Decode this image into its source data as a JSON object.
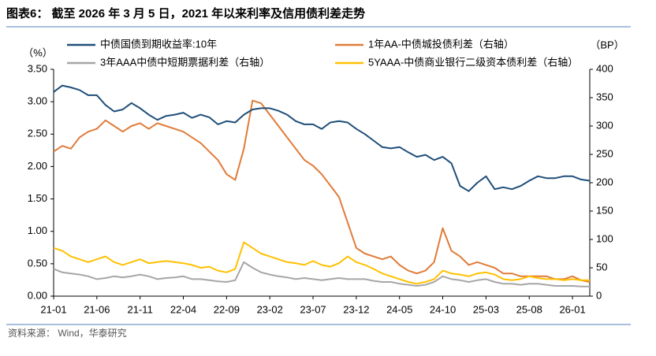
{
  "chart_data": {
    "type": "line",
    "title": "图表6：  截至 2026 年 3 月 5 日，2021 年以来利率及信用债利差走势",
    "source": "资料来源：  Wind，华泰研究",
    "y_label": "（%）",
    "y2_label": "（BP）",
    "categories": [
      "21-01",
      null,
      null,
      null,
      null,
      "21-06",
      null,
      null,
      null,
      null,
      "21-11",
      null,
      null,
      null,
      null,
      "22-04",
      null,
      null,
      null,
      null,
      "22-09",
      null,
      null,
      null,
      null,
      "23-02",
      null,
      null,
      null,
      null,
      "23-07",
      null,
      null,
      null,
      null,
      "23-12",
      null,
      null,
      null,
      null,
      "24-05",
      null,
      null,
      null,
      null,
      "24-10",
      null,
      null,
      null,
      null,
      "25-03",
      null,
      null,
      null,
      null,
      "25-08",
      null,
      null,
      null,
      null,
      "26-01",
      null,
      null
    ],
    "ylim": [
      0,
      3.5
    ],
    "yticks": [
      {
        "value": 0,
        "label": "0.00"
      },
      {
        "value": 0.5,
        "label": "0.50"
      },
      {
        "value": 1,
        "label": "1.00"
      },
      {
        "value": 1.5,
        "label": "1.50"
      },
      {
        "value": 2,
        "label": "2.00"
      },
      {
        "value": 2.5,
        "label": "2.50"
      },
      {
        "value": 3,
        "label": "3.00"
      },
      {
        "value": 3.5,
        "label": "3.50"
      }
    ],
    "y2lim": [
      0,
      400
    ],
    "y2ticks": [
      0,
      50,
      100,
      150,
      200,
      250,
      300,
      350,
      400
    ],
    "series": [
      {
        "name": "中债国债到期收益率:10年",
        "color": "#1f4e79",
        "axis": "y",
        "values": [
          3.15,
          3.25,
          3.22,
          3.18,
          3.1,
          3.1,
          2.95,
          2.85,
          2.88,
          2.98,
          2.9,
          2.8,
          2.72,
          2.78,
          2.8,
          2.83,
          2.75,
          2.8,
          2.76,
          2.65,
          2.7,
          2.68,
          2.8,
          2.88,
          2.9,
          2.9,
          2.86,
          2.8,
          2.7,
          2.65,
          2.65,
          2.58,
          2.68,
          2.7,
          2.68,
          2.58,
          2.5,
          2.4,
          2.3,
          2.28,
          2.3,
          2.22,
          2.15,
          2.18,
          2.1,
          2.15,
          2.05,
          1.7,
          1.62,
          1.75,
          1.85,
          1.65,
          1.68,
          1.65,
          1.7,
          1.78,
          1.85,
          1.82,
          1.82,
          1.85,
          1.85,
          1.8,
          1.78
        ]
      },
      {
        "name": "1年AA-中债城投债利差（右轴）",
        "color": "#e07b39",
        "axis": "y2",
        "values": [
          255,
          265,
          260,
          280,
          290,
          295,
          310,
          300,
          290,
          300,
          305,
          295,
          305,
          300,
          295,
          290,
          280,
          270,
          255,
          240,
          215,
          205,
          260,
          345,
          340,
          320,
          300,
          280,
          260,
          240,
          230,
          215,
          195,
          175,
          130,
          85,
          75,
          70,
          65,
          70,
          55,
          45,
          40,
          45,
          60,
          120,
          80,
          70,
          55,
          60,
          55,
          50,
          40,
          40,
          35,
          35,
          35,
          35,
          30,
          30,
          35,
          28,
          25
        ]
      },
      {
        "name": "3年AAA中债中短期票据利差（右轴）",
        "color": "#a6a6a6",
        "axis": "y2",
        "values": [
          48,
          42,
          40,
          38,
          35,
          30,
          32,
          35,
          33,
          35,
          38,
          35,
          30,
          32,
          33,
          35,
          30,
          30,
          28,
          26,
          25,
          28,
          60,
          50,
          42,
          38,
          35,
          33,
          30,
          32,
          30,
          28,
          30,
          32,
          30,
          30,
          30,
          27,
          25,
          25,
          22,
          20,
          18,
          20,
          25,
          35,
          30,
          28,
          25,
          28,
          30,
          25,
          22,
          22,
          20,
          22,
          22,
          20,
          18,
          18,
          18,
          17,
          17
        ]
      },
      {
        "name": "5YAAA-中债商业银行二级资本债利差（右轴）",
        "color": "#ffc000",
        "axis": "y2",
        "values": [
          85,
          80,
          70,
          65,
          60,
          65,
          70,
          60,
          55,
          60,
          65,
          58,
          60,
          62,
          60,
          58,
          55,
          50,
          52,
          45,
          42,
          48,
          95,
          85,
          75,
          70,
          65,
          60,
          58,
          55,
          62,
          55,
          52,
          58,
          70,
          60,
          55,
          48,
          40,
          35,
          30,
          25,
          22,
          25,
          30,
          45,
          40,
          38,
          35,
          40,
          42,
          38,
          30,
          28,
          30,
          35,
          32,
          30,
          30,
          28,
          30,
          28,
          28
        ]
      }
    ]
  }
}
